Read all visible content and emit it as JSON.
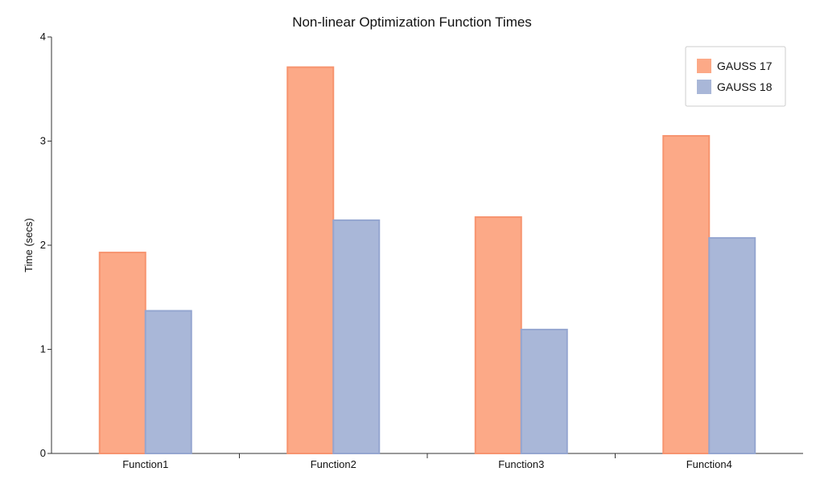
{
  "chart_data": {
    "type": "bar",
    "title": "Non-linear Optimization Function Times",
    "xlabel": "",
    "ylabel": "Time (secs)",
    "categories": [
      "Function1",
      "Function2",
      "Function3",
      "Function4"
    ],
    "series": [
      {
        "name": "GAUSS 17",
        "values": [
          1.93,
          3.71,
          2.27,
          3.05
        ]
      },
      {
        "name": "GAUSS 18",
        "values": [
          1.37,
          2.24,
          1.19,
          2.07
        ]
      }
    ],
    "ylim": [
      0,
      4
    ],
    "yticks": [
      "0",
      "1",
      "2",
      "3",
      "4"
    ],
    "grid": false,
    "legend_position": "top-right"
  },
  "colors": {
    "GAUSS 17": "#fca987",
    "GAUSS 17 stroke": "#f7946f",
    "GAUSS 18": "#a9b7d8",
    "GAUSS 18 stroke": "#95a6d0"
  }
}
